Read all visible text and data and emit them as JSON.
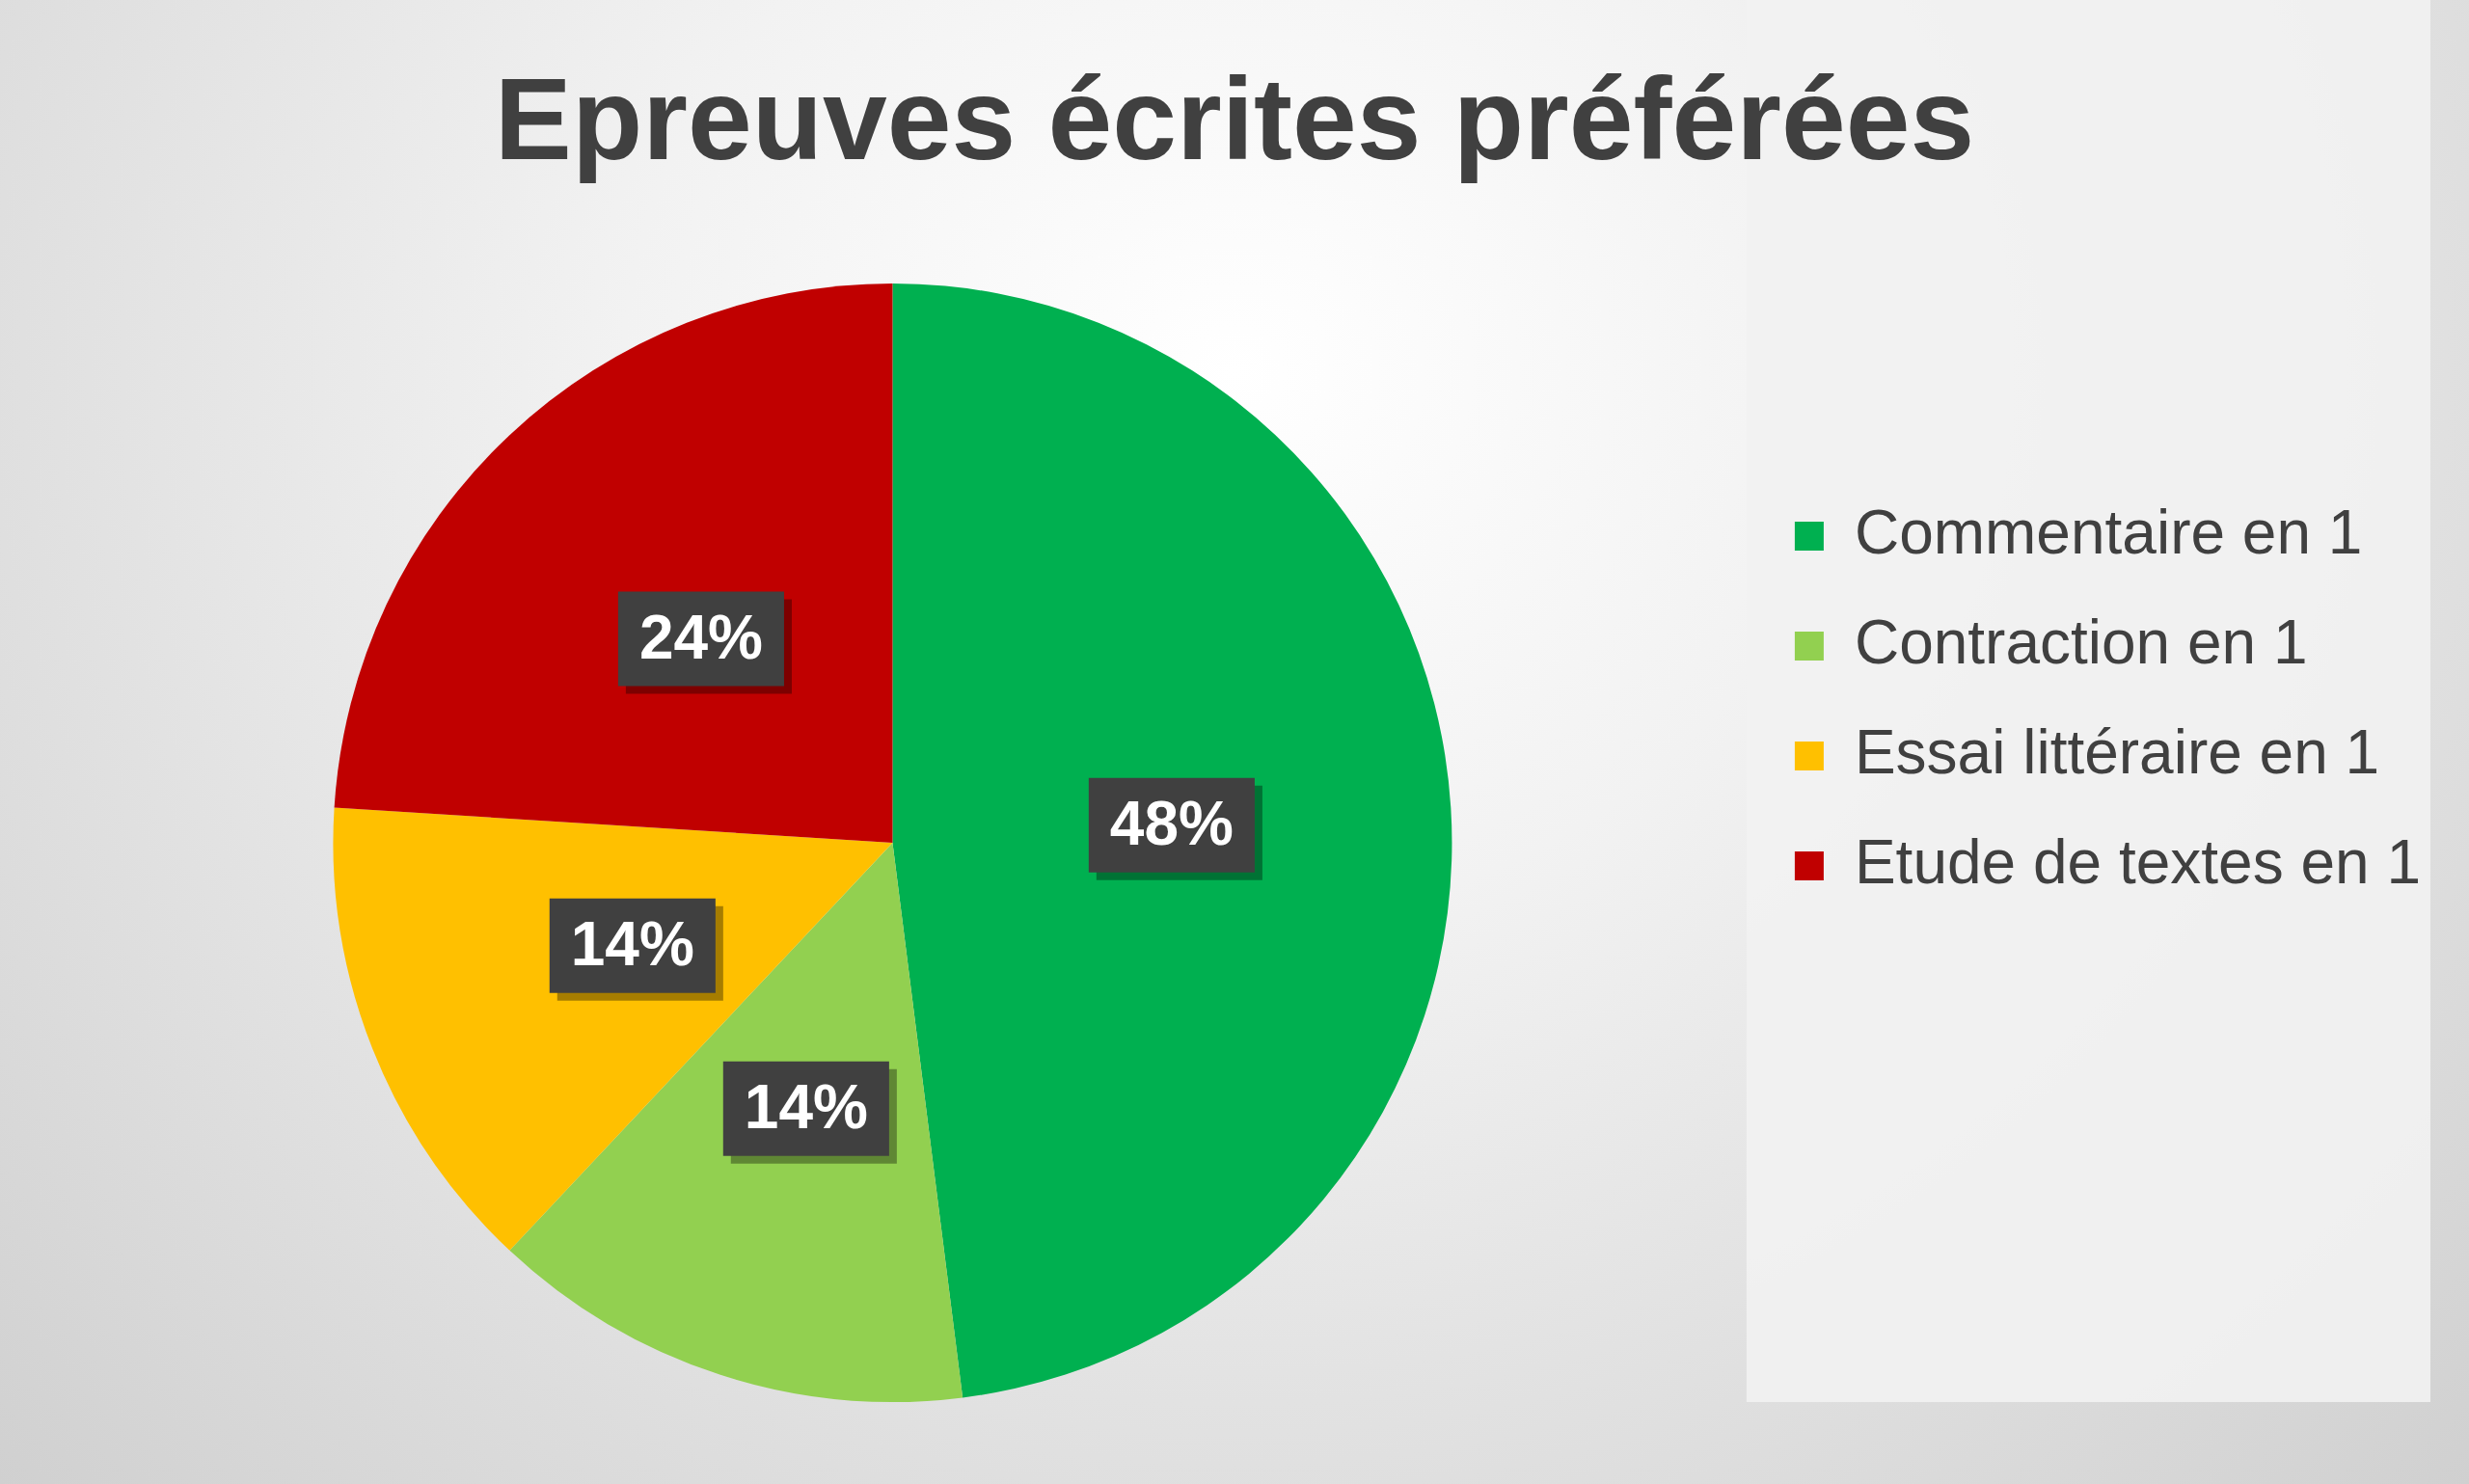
{
  "chart_data": {
    "type": "pie",
    "title": "Epreuves écrites préférées",
    "categories": [
      "Commentaire en 1",
      "Contraction en 1",
      "Essai littéraire en 1",
      "Etude de textes en 1"
    ],
    "values": [
      48,
      14,
      14,
      24
    ],
    "colors": [
      "#00b050",
      "#92d050",
      "#ffc000",
      "#c00000"
    ],
    "value_labels": [
      "48%",
      "14%",
      "14%",
      "24%"
    ],
    "legend": "right"
  }
}
